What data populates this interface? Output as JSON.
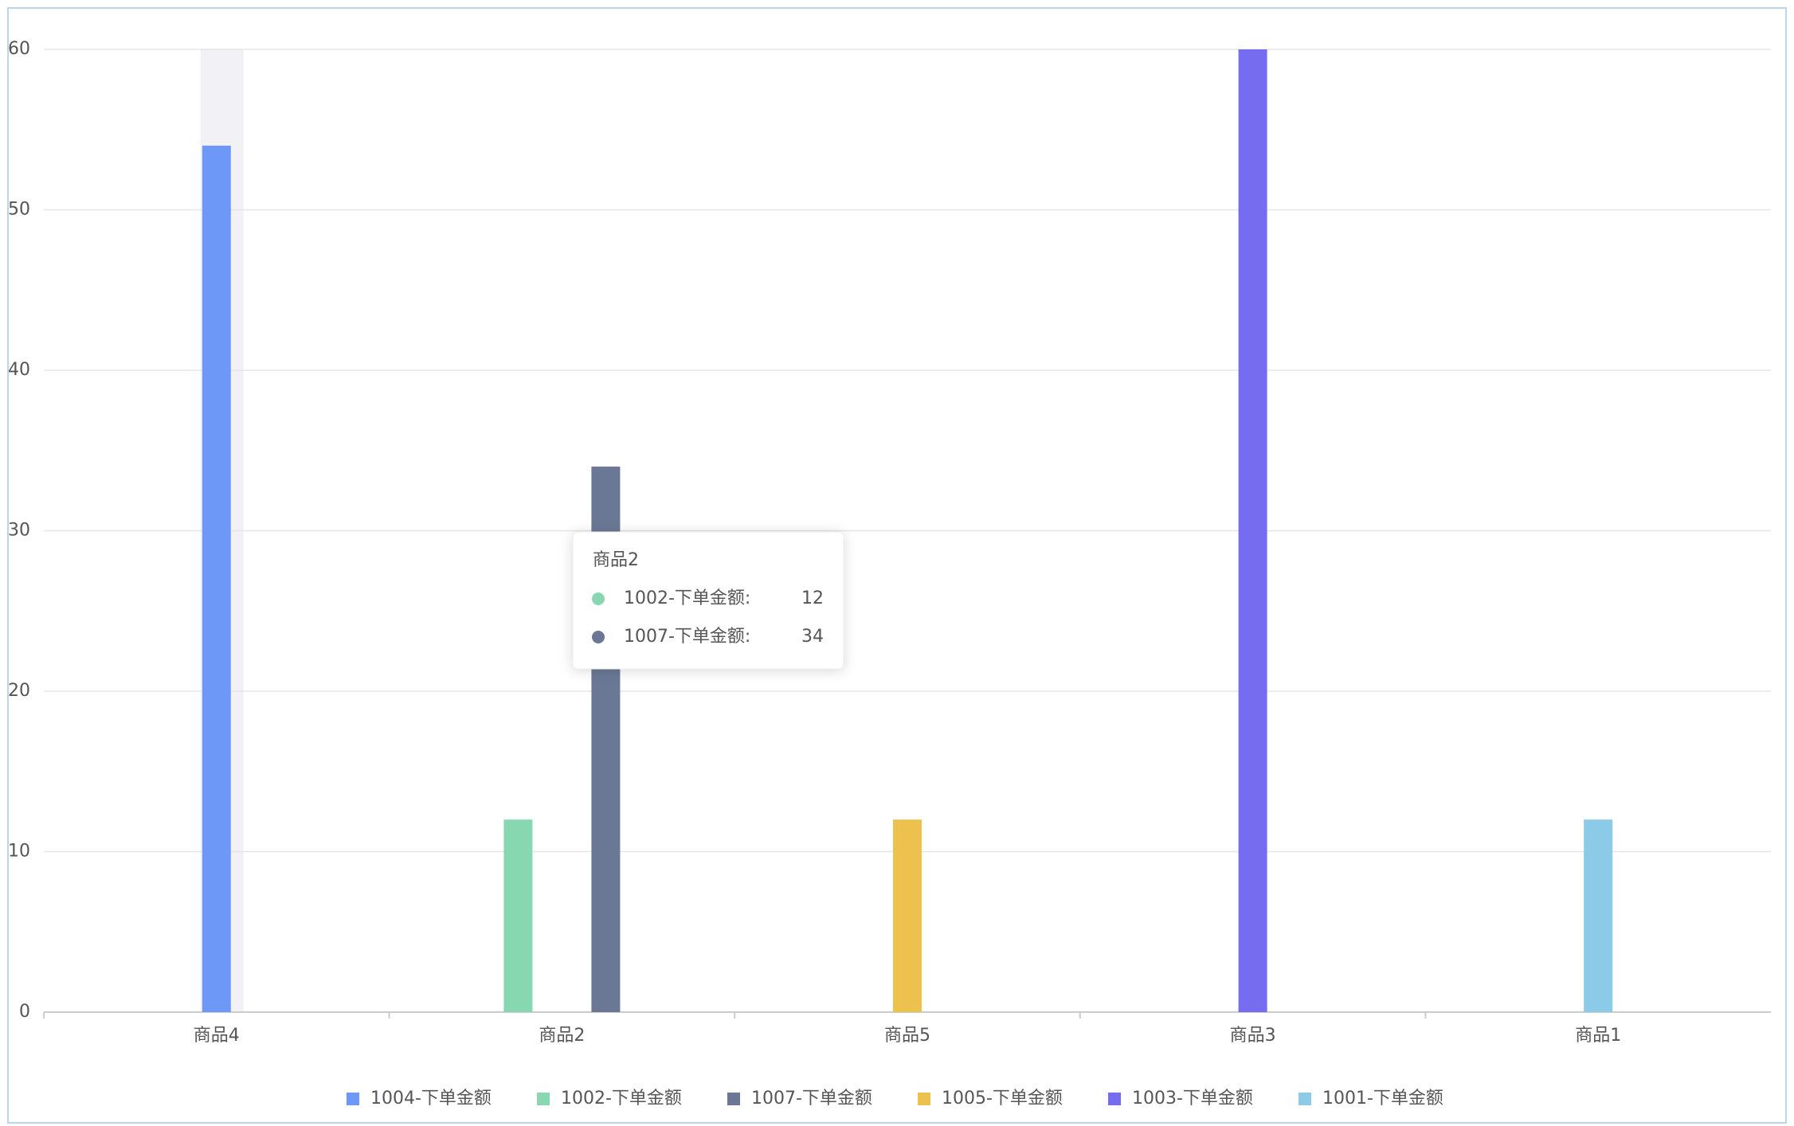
{
  "chart_data": {
    "type": "bar",
    "categories": [
      "商品4",
      "商品2",
      "商品5",
      "商品3",
      "商品1"
    ],
    "series": [
      {
        "name": "1004-下单金额",
        "color": "#6e98f7",
        "values": [
          54,
          null,
          null,
          null,
          null
        ]
      },
      {
        "name": "1002-下单金额",
        "color": "#87d8b0",
        "values": [
          null,
          12,
          null,
          null,
          null
        ]
      },
      {
        "name": "1007-下单金额",
        "color": "#6a7895",
        "values": [
          null,
          34,
          null,
          null,
          null
        ]
      },
      {
        "name": "1005-下单金额",
        "color": "#edc14d",
        "values": [
          null,
          null,
          12,
          null,
          null
        ]
      },
      {
        "name": "1003-下单金额",
        "color": "#756cf0",
        "values": [
          null,
          null,
          null,
          60,
          null
        ]
      },
      {
        "name": "1001-下单金额",
        "color": "#8ccbe8",
        "values": [
          null,
          null,
          null,
          null,
          12
        ]
      }
    ],
    "ylim": [
      0,
      60
    ],
    "yticks": [
      0,
      10,
      20,
      30,
      40,
      50,
      60
    ],
    "grid": true,
    "legend": "bottom"
  }
}
